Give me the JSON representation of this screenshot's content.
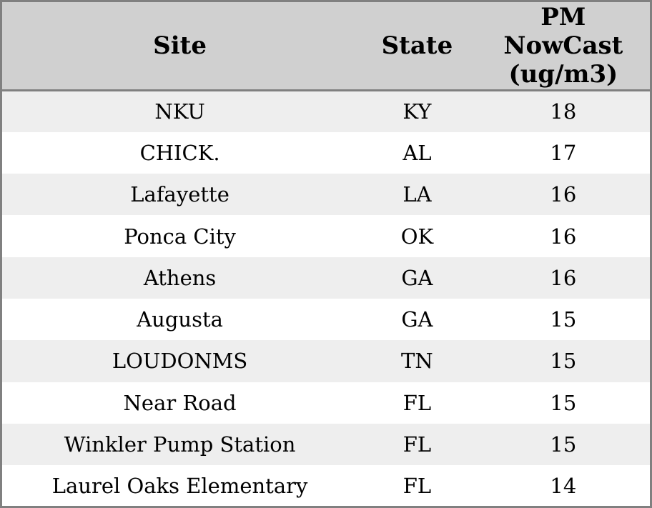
{
  "table": {
    "columns": [
      {
        "key": "site",
        "label": "Site"
      },
      {
        "key": "state",
        "label": "State"
      },
      {
        "key": "pm",
        "label": "PM NowCast (ug/m3)"
      }
    ],
    "rows": [
      {
        "site": "NKU",
        "state": "KY",
        "pm": "18"
      },
      {
        "site": "CHICK.",
        "state": "AL",
        "pm": "17"
      },
      {
        "site": "Lafayette",
        "state": "LA",
        "pm": "16"
      },
      {
        "site": "Ponca City",
        "state": "OK",
        "pm": "16"
      },
      {
        "site": "Athens",
        "state": "GA",
        "pm": "16"
      },
      {
        "site": "Augusta",
        "state": "GA",
        "pm": "15"
      },
      {
        "site": "LOUDONMS",
        "state": "TN",
        "pm": "15"
      },
      {
        "site": "Near Road",
        "state": "FL",
        "pm": "15"
      },
      {
        "site": "Winkler Pump Station",
        "state": "FL",
        "pm": "15"
      },
      {
        "site": "Laurel Oaks Elementary",
        "state": "FL",
        "pm": "14"
      }
    ]
  },
  "chart_data": {
    "type": "table",
    "title": "",
    "columns": [
      "Site",
      "State",
      "PM NowCast (ug/m3)"
    ],
    "rows": [
      [
        "NKU",
        "KY",
        18
      ],
      [
        "CHICK.",
        "AL",
        17
      ],
      [
        "Lafayette",
        "LA",
        16
      ],
      [
        "Ponca City",
        "OK",
        16
      ],
      [
        "Athens",
        "GA",
        16
      ],
      [
        "Augusta",
        "GA",
        15
      ],
      [
        "LOUDONMS",
        "TN",
        15
      ],
      [
        "Near Road",
        "FL",
        15
      ],
      [
        "Winkler Pump Station",
        "FL",
        15
      ],
      [
        "Laurel Oaks Elementary",
        "FL",
        14
      ]
    ],
    "units": "ug/m3",
    "layout": {
      "striped": true,
      "header_bg": "#d0d0d0"
    }
  },
  "colors": {
    "header_bg": "#d0d0d0",
    "stripe_bg": "#eeeeee",
    "row_bg": "#ffffff",
    "border": "#808080",
    "text": "#000000"
  }
}
